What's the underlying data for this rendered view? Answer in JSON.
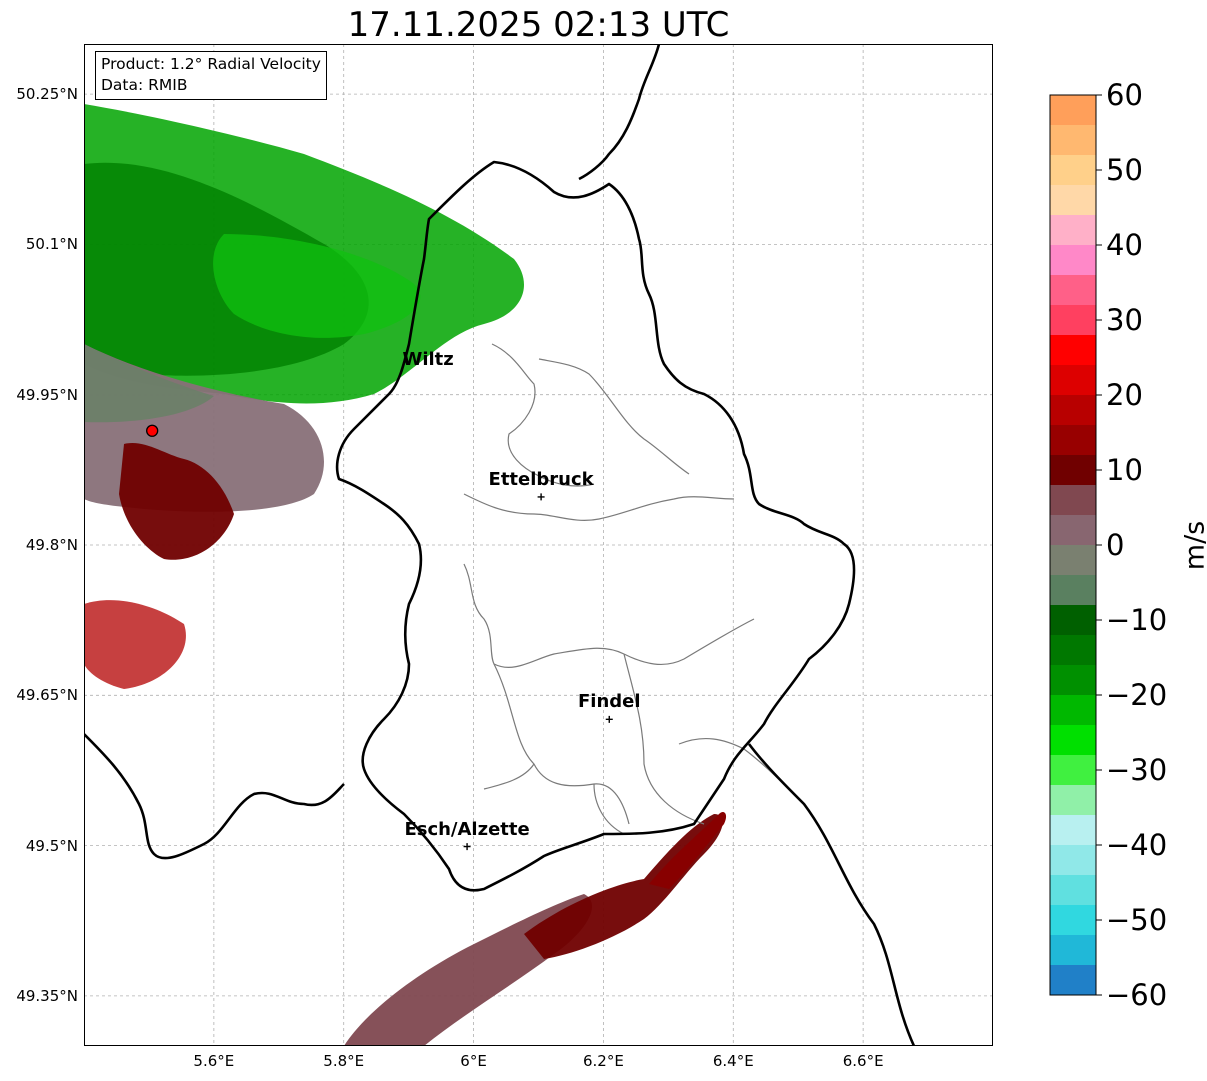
{
  "title": "17.11.2025 02:13 UTC",
  "info_box": {
    "product": "Product: 1.2° Radial Velocity",
    "data_source": "Data: RMIB"
  },
  "axes": {
    "lon_range": [
      5.4,
      6.8
    ],
    "lat_range": [
      49.3,
      50.3
    ],
    "lat_ticks": [
      {
        "value": 50.25,
        "label": "50.25°N"
      },
      {
        "value": 50.1,
        "label": "50.1°N"
      },
      {
        "value": 49.95,
        "label": "49.95°N"
      },
      {
        "value": 49.8,
        "label": "49.8°N"
      },
      {
        "value": 49.65,
        "label": "49.65°N"
      },
      {
        "value": 49.5,
        "label": "49.5°N"
      },
      {
        "value": 49.35,
        "label": "49.35°N"
      }
    ],
    "lon_ticks": [
      {
        "value": 5.6,
        "label": "5.6°E"
      },
      {
        "value": 5.8,
        "label": "5.8°E"
      },
      {
        "value": 6.0,
        "label": "6°E"
      },
      {
        "value": 6.2,
        "label": "6.2°E"
      },
      {
        "value": 6.4,
        "label": "6.4°E"
      },
      {
        "value": 6.6,
        "label": "6.6°E"
      }
    ],
    "grid": true
  },
  "cities": [
    {
      "name": "Wiltz",
      "lon": 5.93,
      "lat": 49.968,
      "marker": false
    },
    {
      "name": "Ettelbruck",
      "lon": 6.104,
      "lat": 49.848,
      "marker": true
    },
    {
      "name": "Findel",
      "lon": 6.209,
      "lat": 49.626,
      "marker": true
    },
    {
      "name": "Esch/Alzette",
      "lon": 5.99,
      "lat": 49.499,
      "marker": true
    }
  ],
  "radar_site": {
    "lon": 5.505,
    "lat": 49.914,
    "color": "#ff0000"
  },
  "colorbar": {
    "unit": "m/s",
    "min": -60,
    "max": 60,
    "ticks": [
      {
        "value": 60,
        "label": "60"
      },
      {
        "value": 50,
        "label": "50"
      },
      {
        "value": 40,
        "label": "40"
      },
      {
        "value": 30,
        "label": "30"
      },
      {
        "value": 20,
        "label": "20"
      },
      {
        "value": 10,
        "label": "10"
      },
      {
        "value": 0,
        "label": "0"
      },
      {
        "value": -10,
        "label": "−10"
      },
      {
        "value": -20,
        "label": "−20"
      },
      {
        "value": -30,
        "label": "−30"
      },
      {
        "value": -40,
        "label": "−40"
      },
      {
        "value": -50,
        "label": "−50"
      },
      {
        "value": -60,
        "label": "−60"
      }
    ],
    "stops": [
      {
        "from": 56,
        "to": 60,
        "color": "#ff9f5a"
      },
      {
        "from": 52,
        "to": 56,
        "color": "#ffb870"
      },
      {
        "from": 48,
        "to": 52,
        "color": "#ffd08a"
      },
      {
        "from": 44,
        "to": 48,
        "color": "#ffd8a8"
      },
      {
        "from": 40,
        "to": 44,
        "color": "#ffb0c8"
      },
      {
        "from": 36,
        "to": 40,
        "color": "#ff88c8"
      },
      {
        "from": 32,
        "to": 36,
        "color": "#ff6088"
      },
      {
        "from": 28,
        "to": 32,
        "color": "#ff4060"
      },
      {
        "from": 24,
        "to": 28,
        "color": "#ff0000"
      },
      {
        "from": 20,
        "to": 24,
        "color": "#dd0000"
      },
      {
        "from": 16,
        "to": 20,
        "color": "#b80000"
      },
      {
        "from": 12,
        "to": 16,
        "color": "#980000"
      },
      {
        "from": 8,
        "to": 12,
        "color": "#700000"
      },
      {
        "from": 4,
        "to": 8,
        "color": "#804850"
      },
      {
        "from": 0,
        "to": 4,
        "color": "#886670"
      },
      {
        "from": -4,
        "to": 0,
        "color": "#7a8070"
      },
      {
        "from": -8,
        "to": -4,
        "color": "#5a8060"
      },
      {
        "from": -12,
        "to": -8,
        "color": "#006000"
      },
      {
        "from": -16,
        "to": -12,
        "color": "#007800"
      },
      {
        "from": -20,
        "to": -16,
        "color": "#009000"
      },
      {
        "from": -24,
        "to": -20,
        "color": "#00b800"
      },
      {
        "from": -28,
        "to": -24,
        "color": "#00e000"
      },
      {
        "from": -32,
        "to": -28,
        "color": "#40f040"
      },
      {
        "from": -36,
        "to": -32,
        "color": "#90f0a8"
      },
      {
        "from": -40,
        "to": -36,
        "color": "#b8f0f0"
      },
      {
        "from": -44,
        "to": -40,
        "color": "#90e8e8"
      },
      {
        "from": -48,
        "to": -44,
        "color": "#60e0e0"
      },
      {
        "from": -52,
        "to": -48,
        "color": "#30d8e0"
      },
      {
        "from": -56,
        "to": -52,
        "color": "#20b8d8"
      },
      {
        "from": -60,
        "to": -56,
        "color": "#2080c8"
      }
    ]
  }
}
